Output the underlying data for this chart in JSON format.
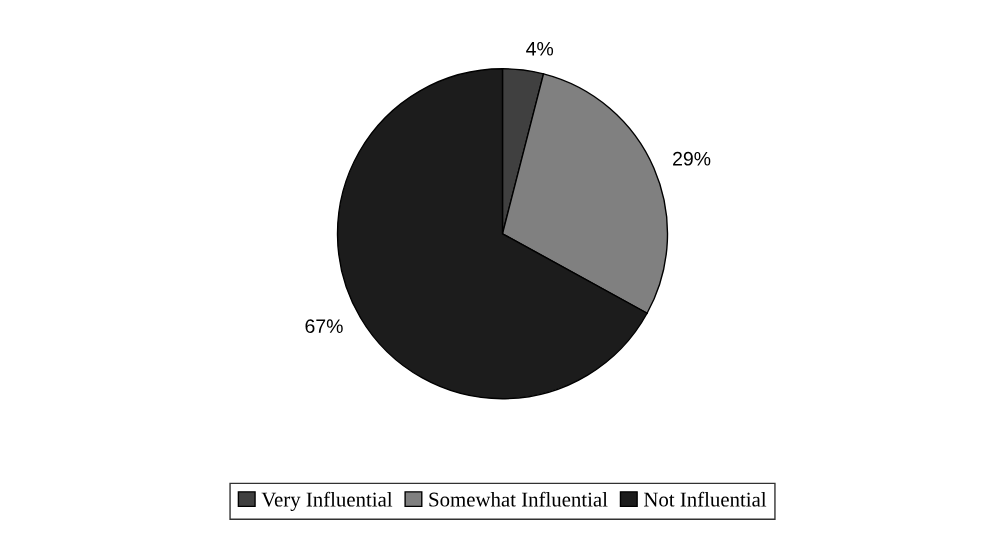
{
  "chart_data": {
    "type": "pie",
    "categories": [
      "Very Influential",
      "Somewhat Influential",
      "Not Influential"
    ],
    "values": [
      4,
      29,
      67
    ],
    "colors": [
      "#404040",
      "#808080",
      "#1c1c1c"
    ],
    "value_labels": [
      "4%",
      "29%",
      "67%"
    ],
    "legend": "bottom"
  }
}
